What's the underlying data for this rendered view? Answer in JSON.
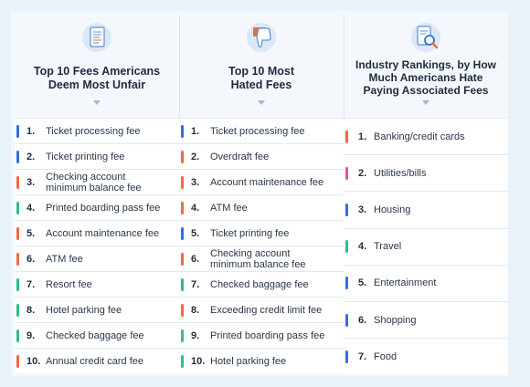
{
  "columns": [
    {
      "title": "Top 10 Fees Americans\nDeem Most Unfair",
      "icon": "document-icon",
      "items": [
        {
          "num": "1.",
          "label": "Ticket processing fee",
          "color": "#2f6fe0"
        },
        {
          "num": "2.",
          "label": "Ticket printing fee",
          "color": "#2f6fe0"
        },
        {
          "num": "3.",
          "label": "Checking account\nminimum balance fee",
          "color": "#f06a3f"
        },
        {
          "num": "4.",
          "label": "Printed boarding pass fee",
          "color": "#2bbf86"
        },
        {
          "num": "5.",
          "label": "Account maintenance fee",
          "color": "#f06a3f"
        },
        {
          "num": "6.",
          "label": "ATM fee",
          "color": "#f06a3f"
        },
        {
          "num": "7.",
          "label": "Resort fee",
          "color": "#2bbf86"
        },
        {
          "num": "8.",
          "label": "Hotel parking fee",
          "color": "#2bbf86"
        },
        {
          "num": "9.",
          "label": "Checked baggage fee",
          "color": "#2bbf86"
        },
        {
          "num": "10.",
          "label": "Annual credit card fee",
          "color": "#f06a3f"
        }
      ]
    },
    {
      "title": "Top 10 Most\nHated Fees",
      "icon": "thumbs-down-icon",
      "items": [
        {
          "num": "1.",
          "label": "Ticket processing fee",
          "color": "#2f6fe0"
        },
        {
          "num": "2.",
          "label": "Overdraft fee",
          "color": "#f06a3f"
        },
        {
          "num": "3.",
          "label": "Account maintenance fee",
          "color": "#f06a3f"
        },
        {
          "num": "4.",
          "label": "ATM fee",
          "color": "#f06a3f"
        },
        {
          "num": "5.",
          "label": "Ticket printing fee",
          "color": "#2f6fe0"
        },
        {
          "num": "6.",
          "label": "Checking account\nminimum balance fee",
          "color": "#f06a3f"
        },
        {
          "num": "7.",
          "label": "Checked baggage fee",
          "color": "#2bbf86"
        },
        {
          "num": "8.",
          "label": "Exceeding credit limit fee",
          "color": "#f06a3f"
        },
        {
          "num": "9.",
          "label": "Printed boarding pass fee",
          "color": "#2bbf86"
        },
        {
          "num": "10.",
          "label": "Hotel parking fee",
          "color": "#2bbf86"
        }
      ]
    },
    {
      "title": "Industry Rankings, by How\nMuch Americans Hate\nPaying Associated Fees",
      "icon": "magnifier-document-icon",
      "items": [
        {
          "num": "1.",
          "label": "Banking/credit cards",
          "color": "#f06a3f"
        },
        {
          "num": "2.",
          "label": "Utilities/bills",
          "color": "#e94bb8"
        },
        {
          "num": "3.",
          "label": "Housing",
          "color": "#2f6fe0"
        },
        {
          "num": "4.",
          "label": "Travel",
          "color": "#2bbf86"
        },
        {
          "num": "5.",
          "label": "Entertainment",
          "color": "#2f6fe0"
        },
        {
          "num": "6.",
          "label": "Shopping",
          "color": "#2f6fe0"
        },
        {
          "num": "7.",
          "label": "Food",
          "color": "#2f6fe0"
        }
      ]
    }
  ]
}
